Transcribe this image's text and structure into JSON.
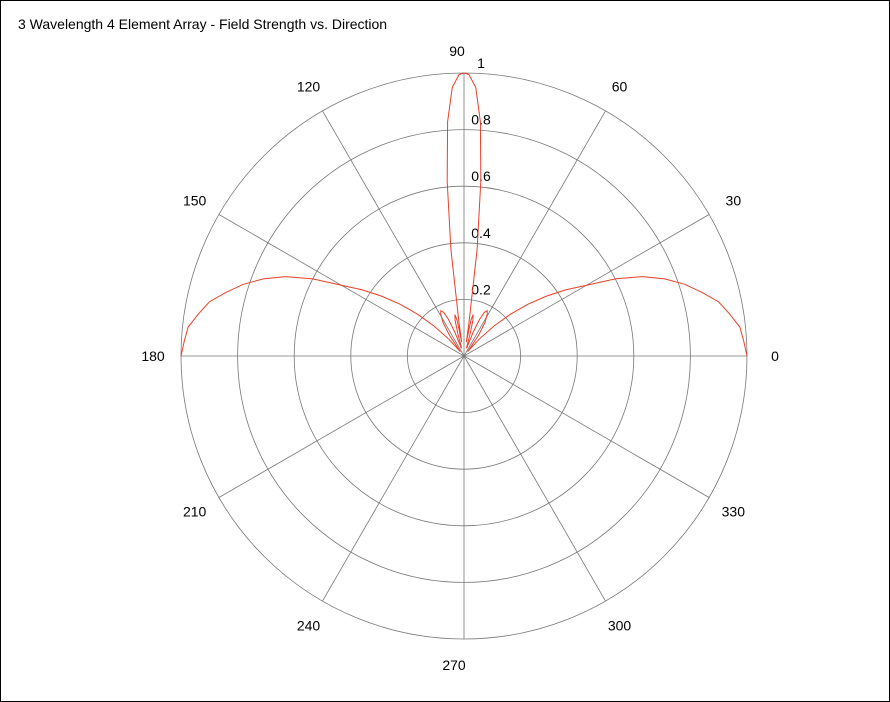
{
  "chart_data": {
    "type": "polar-line",
    "title": "3 Wavelength 4 Element Array - Field Strength vs. Direction",
    "angle_unit": "degrees",
    "angle_ticks": [
      0,
      30,
      60,
      90,
      120,
      150,
      180,
      210,
      240,
      270,
      300,
      330
    ],
    "angle_tick_labels": [
      "0",
      "30",
      "60",
      "90",
      "120",
      "150",
      "180",
      "210",
      "240",
      "270",
      "300",
      "330"
    ],
    "radial_range": [
      0,
      1
    ],
    "radial_ticks": [
      0.2,
      0.4,
      0.6,
      0.8,
      1
    ],
    "radial_tick_labels": [
      "0.2",
      "0.4",
      "0.6",
      "0.8",
      "1"
    ],
    "radial_label_angle": 90,
    "grid": true,
    "legend": "none",
    "series": [
      {
        "color": "#e8402a",
        "angle_range": [
          0,
          180
        ],
        "points": [
          [
            0,
            1.0
          ],
          [
            3,
            0.99
          ],
          [
            6,
            0.98
          ],
          [
            9,
            0.95
          ],
          [
            12,
            0.92
          ],
          [
            15,
            0.87
          ],
          [
            18,
            0.82
          ],
          [
            21,
            0.76
          ],
          [
            24,
            0.69
          ],
          [
            27,
            0.6
          ],
          [
            30,
            0.5
          ],
          [
            33,
            0.43
          ],
          [
            36,
            0.36
          ],
          [
            39,
            0.29
          ],
          [
            42,
            0.22
          ],
          [
            45,
            0.15
          ],
          [
            48,
            0.08
          ],
          [
            50,
            0.02
          ],
          [
            52,
            0.03
          ],
          [
            55,
            0.09
          ],
          [
            58,
            0.14
          ],
          [
            61,
            0.17
          ],
          [
            63,
            0.18
          ],
          [
            65,
            0.17
          ],
          [
            67,
            0.14
          ],
          [
            69,
            0.09
          ],
          [
            71,
            0.03
          ],
          [
            73,
            0.03
          ],
          [
            74.5,
            0.08
          ],
          [
            76,
            0.13
          ],
          [
            77.5,
            0.15
          ],
          [
            79,
            0.13
          ],
          [
            80.5,
            0.05
          ],
          [
            81.5,
            0.12
          ],
          [
            83,
            0.38
          ],
          [
            84.5,
            0.62
          ],
          [
            86,
            0.83
          ],
          [
            87.5,
            0.95
          ],
          [
            89,
            0.995
          ],
          [
            90,
            1.0
          ],
          [
            91,
            0.995
          ],
          [
            92.5,
            0.95
          ],
          [
            94,
            0.83
          ],
          [
            95.5,
            0.62
          ],
          [
            97,
            0.38
          ],
          [
            98.5,
            0.12
          ],
          [
            99.5,
            0.05
          ],
          [
            101,
            0.13
          ],
          [
            102.5,
            0.15
          ],
          [
            104,
            0.13
          ],
          [
            105.5,
            0.08
          ],
          [
            107,
            0.03
          ],
          [
            109,
            0.03
          ],
          [
            111,
            0.09
          ],
          [
            113,
            0.14
          ],
          [
            115,
            0.17
          ],
          [
            117,
            0.18
          ],
          [
            119,
            0.17
          ],
          [
            122,
            0.14
          ],
          [
            125,
            0.09
          ],
          [
            128,
            0.03
          ],
          [
            130,
            0.02
          ],
          [
            132,
            0.08
          ],
          [
            135,
            0.15
          ],
          [
            138,
            0.22
          ],
          [
            141,
            0.29
          ],
          [
            144,
            0.36
          ],
          [
            147,
            0.43
          ],
          [
            150,
            0.5
          ],
          [
            153,
            0.6
          ],
          [
            156,
            0.69
          ],
          [
            159,
            0.76
          ],
          [
            162,
            0.82
          ],
          [
            165,
            0.87
          ],
          [
            168,
            0.92
          ],
          [
            171,
            0.95
          ],
          [
            174,
            0.98
          ],
          [
            177,
            0.99
          ],
          [
            180,
            1.0
          ]
        ]
      }
    ]
  }
}
